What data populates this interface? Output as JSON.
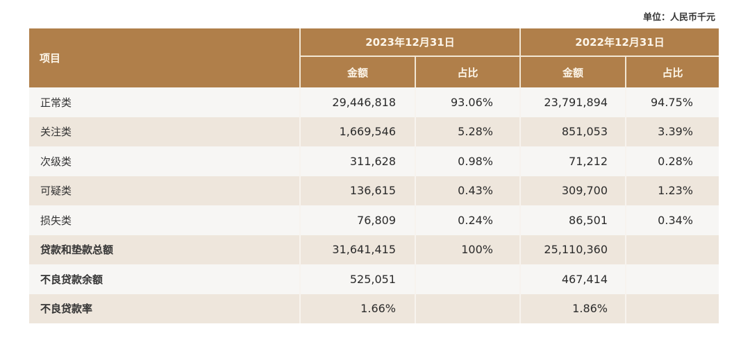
{
  "unit_label": "单位：人民币千元",
  "colors": {
    "header": "#b07f4a",
    "row_light": "#f7f6f4",
    "row_beige": "#eee6dc"
  },
  "header": {
    "item": "项目",
    "period_2023": "2023年12月31日",
    "period_2022": "2022年12月31日",
    "amount": "金额",
    "share": "占比"
  },
  "rows": [
    {
      "label": "正常类",
      "amt_2023": "29,446,818",
      "pct_2023": "93.06%",
      "amt_2022": "23,791,894",
      "pct_2022": "94.75%"
    },
    {
      "label": "关注类",
      "amt_2023": "1,669,546",
      "pct_2023": "5.28%",
      "amt_2022": "851,053",
      "pct_2022": "3.39%"
    },
    {
      "label": "次级类",
      "amt_2023": "311,628",
      "pct_2023": "0.98%",
      "amt_2022": "71,212",
      "pct_2022": "0.28%"
    },
    {
      "label": "可疑类",
      "amt_2023": "136,615",
      "pct_2023": "0.43%",
      "amt_2022": "309,700",
      "pct_2022": "1.23%"
    },
    {
      "label": "损失类",
      "amt_2023": "76,809",
      "pct_2023": "0.24%",
      "amt_2022": "86,501",
      "pct_2022": "0.34%"
    },
    {
      "label": "贷款和垫款总额",
      "amt_2023": "31,641,415",
      "pct_2023": "100%",
      "amt_2022": "25,110,360",
      "pct_2022": ""
    },
    {
      "label": "不良贷款余额",
      "amt_2023": "525,051",
      "pct_2023": "",
      "amt_2022": "467,414",
      "pct_2022": ""
    },
    {
      "label": "不良贷款率",
      "amt_2023": "1.66%",
      "pct_2023": "",
      "amt_2022": "1.86%",
      "pct_2022": ""
    }
  ]
}
